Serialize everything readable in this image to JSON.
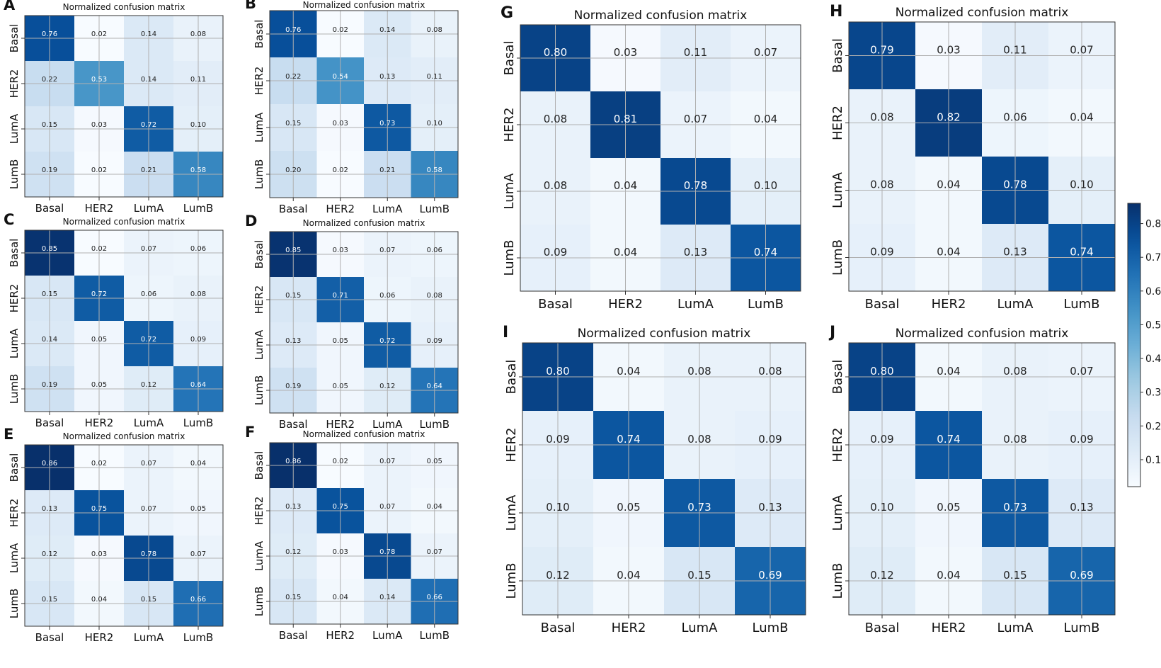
{
  "figure": {
    "colorbar": {
      "ticks": [
        0.1,
        0.2,
        0.3,
        0.4,
        0.5,
        0.6,
        0.7,
        0.8
      ],
      "min": 0.02,
      "max": 0.86
    }
  },
  "chart_data": [
    {
      "type": "heatmap",
      "letter": "A",
      "title": "Normalized confusion matrix",
      "categories": [
        "Basal",
        "HER2",
        "LumA",
        "LumB"
      ],
      "values": [
        [
          0.76,
          0.02,
          0.14,
          0.08
        ],
        [
          0.22,
          0.53,
          0.14,
          0.11
        ],
        [
          0.15,
          0.03,
          0.72,
          0.1
        ],
        [
          0.19,
          0.02,
          0.21,
          0.58
        ]
      ]
    },
    {
      "type": "heatmap",
      "letter": "B",
      "title": "Normalized confusion matrix",
      "categories": [
        "Basal",
        "HER2",
        "LumA",
        "LumB"
      ],
      "values": [
        [
          0.76,
          0.02,
          0.14,
          0.08
        ],
        [
          0.22,
          0.54,
          0.13,
          0.11
        ],
        [
          0.15,
          0.03,
          0.73,
          0.1
        ],
        [
          0.2,
          0.02,
          0.21,
          0.58
        ]
      ]
    },
    {
      "type": "heatmap",
      "letter": "C",
      "title": "Normalized confusion matrix",
      "categories": [
        "Basal",
        "HER2",
        "LumA",
        "LumB"
      ],
      "values": [
        [
          0.85,
          0.02,
          0.07,
          0.06
        ],
        [
          0.15,
          0.72,
          0.06,
          0.08
        ],
        [
          0.14,
          0.05,
          0.72,
          0.09
        ],
        [
          0.19,
          0.05,
          0.12,
          0.64
        ]
      ]
    },
    {
      "type": "heatmap",
      "letter": "D",
      "title": "Normalized confusion matrix",
      "categories": [
        "Basal",
        "HER2",
        "LumA",
        "LumB"
      ],
      "values": [
        [
          0.85,
          0.03,
          0.07,
          0.06
        ],
        [
          0.15,
          0.71,
          0.06,
          0.08
        ],
        [
          0.13,
          0.05,
          0.72,
          0.09
        ],
        [
          0.19,
          0.05,
          0.12,
          0.64
        ]
      ]
    },
    {
      "type": "heatmap",
      "letter": "E",
      "title": "Normalized confusion matrix",
      "categories": [
        "Basal",
        "HER2",
        "LumA",
        "LumB"
      ],
      "values": [
        [
          0.86,
          0.02,
          0.07,
          0.04
        ],
        [
          0.13,
          0.75,
          0.07,
          0.05
        ],
        [
          0.12,
          0.03,
          0.78,
          0.07
        ],
        [
          0.15,
          0.04,
          0.15,
          0.66
        ]
      ]
    },
    {
      "type": "heatmap",
      "letter": "F",
      "title": "Normalized confusion matrix",
      "categories": [
        "Basal",
        "HER2",
        "LumA",
        "LumB"
      ],
      "values": [
        [
          0.86,
          0.02,
          0.07,
          0.05
        ],
        [
          0.13,
          0.75,
          0.07,
          0.04
        ],
        [
          0.12,
          0.03,
          0.78,
          0.07
        ],
        [
          0.15,
          0.04,
          0.14,
          0.66
        ]
      ]
    },
    {
      "type": "heatmap",
      "letter": "G",
      "title": "Normalized confusion matrix",
      "categories": [
        "Basal",
        "HER2",
        "LumA",
        "LumB"
      ],
      "values": [
        [
          0.8,
          0.03,
          0.11,
          0.07
        ],
        [
          0.08,
          0.81,
          0.07,
          0.04
        ],
        [
          0.08,
          0.04,
          0.78,
          0.1
        ],
        [
          0.09,
          0.04,
          0.13,
          0.74
        ]
      ]
    },
    {
      "type": "heatmap",
      "letter": "H",
      "title": "Normalized confusion matrix",
      "categories": [
        "Basal",
        "HER2",
        "LumA",
        "LumB"
      ],
      "values": [
        [
          0.79,
          0.03,
          0.11,
          0.07
        ],
        [
          0.08,
          0.82,
          0.06,
          0.04
        ],
        [
          0.08,
          0.04,
          0.78,
          0.1
        ],
        [
          0.09,
          0.04,
          0.13,
          0.74
        ]
      ]
    },
    {
      "type": "heatmap",
      "letter": "I",
      "title": "Normalized confusion matrix",
      "categories": [
        "Basal",
        "HER2",
        "LumA",
        "LumB"
      ],
      "values": [
        [
          0.8,
          0.04,
          0.08,
          0.08
        ],
        [
          0.09,
          0.74,
          0.08,
          0.09
        ],
        [
          0.1,
          0.05,
          0.73,
          0.13
        ],
        [
          0.12,
          0.04,
          0.15,
          0.69
        ]
      ]
    },
    {
      "type": "heatmap",
      "letter": "J",
      "title": "Normalized confusion matrix",
      "categories": [
        "Basal",
        "HER2",
        "LumA",
        "LumB"
      ],
      "values": [
        [
          0.8,
          0.04,
          0.08,
          0.07
        ],
        [
          0.09,
          0.74,
          0.08,
          0.09
        ],
        [
          0.1,
          0.05,
          0.73,
          0.13
        ],
        [
          0.12,
          0.04,
          0.15,
          0.69
        ]
      ]
    }
  ]
}
